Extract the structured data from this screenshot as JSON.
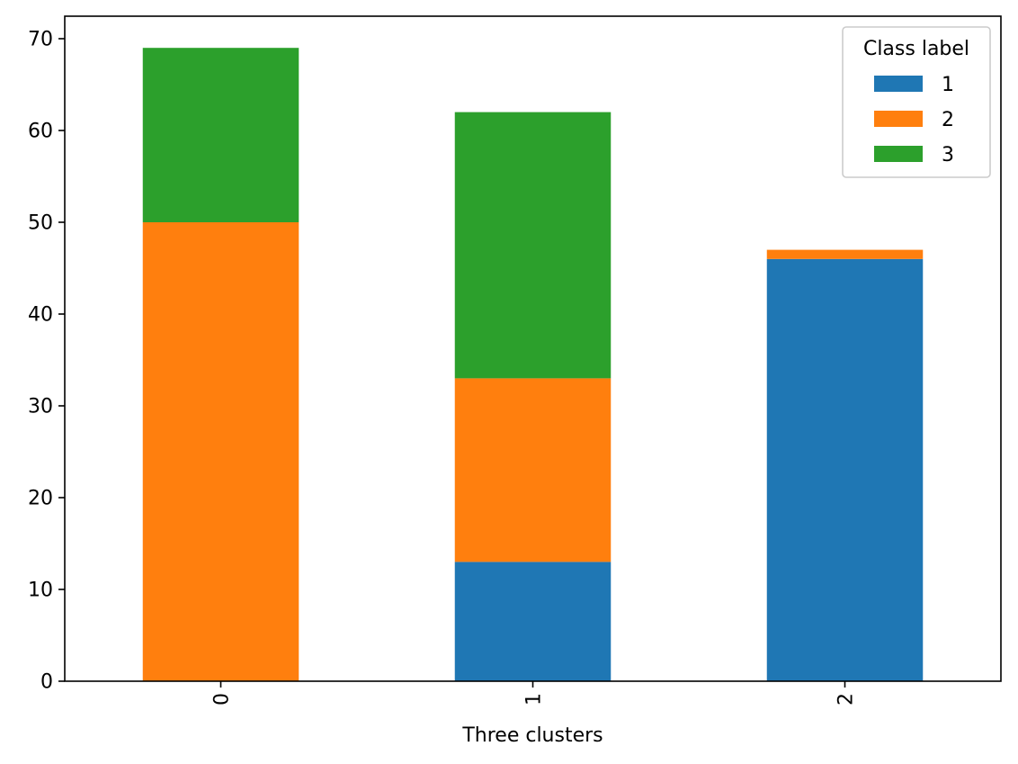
{
  "chart_data": {
    "type": "bar",
    "stacked": true,
    "categories": [
      "0",
      "1",
      "2"
    ],
    "series": [
      {
        "name": "1",
        "values": [
          0,
          13,
          46
        ],
        "color": "#1f77b4"
      },
      {
        "name": "2",
        "values": [
          50,
          20,
          1
        ],
        "color": "#ff7f0e"
      },
      {
        "name": "3",
        "values": [
          19,
          29,
          0
        ],
        "color": "#2ca02c"
      }
    ],
    "xlabel": "Three clusters",
    "ylabel": "",
    "ylim": [
      0,
      72.45
    ],
    "yticks": [
      0,
      10,
      20,
      30,
      40,
      50,
      60,
      70
    ],
    "legend": {
      "title": "Class label",
      "position": "top-right"
    },
    "grid": false
  }
}
